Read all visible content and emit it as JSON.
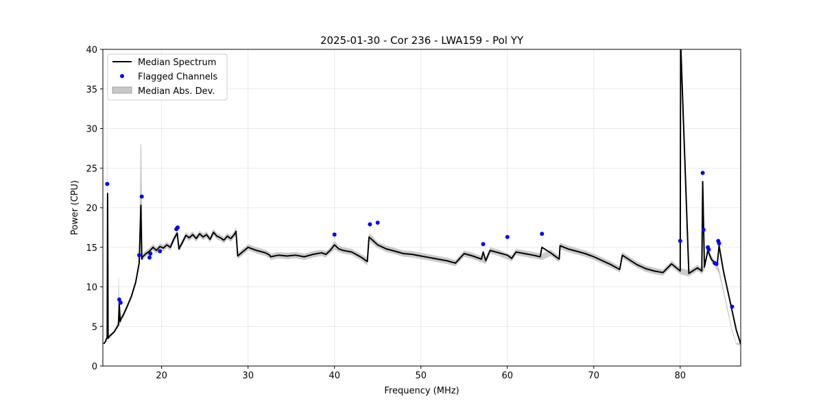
{
  "chart_data": {
    "type": "line",
    "title": "2025-01-30 - Cor 236 - LWA159 - Pol YY",
    "xlabel": "Frequency (MHz)",
    "ylabel": "Power (CPU)",
    "xlim": [
      13.2,
      87.0
    ],
    "ylim": [
      0,
      40
    ],
    "xticks": [
      20,
      30,
      40,
      50,
      60,
      70,
      80
    ],
    "yticks": [
      0,
      5,
      10,
      15,
      20,
      25,
      30,
      35,
      40
    ],
    "grid": true,
    "legend_position": "upper-left",
    "legend": [
      {
        "label": "Median Spectrum",
        "kind": "line",
        "color": "#000000"
      },
      {
        "label": "Flagged Channels",
        "kind": "marker",
        "color": "#0000ff"
      },
      {
        "label": "Median Abs. Dev.",
        "kind": "band",
        "color": "#c8c8c8"
      }
    ],
    "series": [
      {
        "name": "Median Spectrum",
        "color": "#000000",
        "x": [
          13.3,
          13.5,
          13.6,
          13.7,
          13.75,
          13.8,
          14.0,
          14.5,
          15.0,
          15.1,
          15.2,
          15.3,
          15.5,
          16.0,
          16.5,
          17.0,
          17.4,
          17.6,
          17.7,
          17.8,
          18.2,
          18.6,
          19.0,
          19.4,
          19.8,
          20.2,
          20.6,
          21.0,
          21.4,
          21.8,
          22.0,
          22.4,
          22.8,
          23.2,
          23.6,
          24.0,
          24.4,
          24.8,
          25.2,
          25.6,
          26.0,
          26.4,
          26.8,
          27.2,
          27.6,
          28.0,
          28.4,
          28.6,
          28.8,
          30.0,
          31.0,
          32.0,
          32.5,
          32.6,
          33.5,
          34.5,
          35.5,
          36.5,
          37.5,
          38.5,
          39.0,
          39.5,
          40.0,
          40.5,
          41.0,
          42.0,
          43.0,
          43.8,
          44.0,
          44.5,
          45.0,
          46.0,
          47.0,
          48.0,
          49.0,
          50.0,
          51.0,
          52.0,
          53.0,
          54.0,
          55.0,
          56.0,
          57.0,
          57.2,
          57.5,
          58.0,
          59.0,
          60.0,
          60.5,
          61.0,
          62.0,
          63.0,
          63.8,
          64.0,
          65.0,
          66.0,
          66.1,
          67.0,
          68.0,
          69.0,
          70.0,
          71.0,
          72.0,
          73.0,
          73.3,
          74.0,
          75.0,
          76.0,
          77.0,
          78.0,
          79.0,
          80.0,
          80.05,
          81.0,
          82.0,
          82.5,
          82.6,
          82.8,
          83.2,
          83.6,
          84.0,
          84.3,
          84.5,
          85.0,
          85.5,
          86.0,
          86.5,
          87.0
        ],
        "y": [
          2.8,
          3.1,
          3.4,
          3.6,
          21.8,
          3.5,
          3.8,
          4.3,
          5.2,
          7.8,
          5.6,
          6.0,
          6.3,
          7.5,
          8.8,
          10.6,
          13.0,
          20.3,
          13.5,
          13.8,
          14.2,
          14.5,
          15.0,
          14.6,
          15.1,
          14.9,
          15.3,
          15.0,
          16.0,
          16.8,
          14.8,
          15.6,
          16.5,
          16.2,
          16.6,
          16.1,
          16.7,
          16.3,
          16.6,
          16.0,
          16.9,
          16.4,
          16.2,
          15.9,
          16.4,
          16.1,
          16.6,
          17.0,
          13.9,
          15.0,
          14.6,
          14.3,
          14.0,
          13.8,
          14.0,
          13.9,
          14.0,
          13.8,
          14.1,
          14.3,
          14.1,
          14.6,
          15.3,
          14.8,
          14.6,
          14.4,
          13.8,
          13.2,
          16.3,
          15.8,
          15.3,
          14.8,
          14.5,
          14.2,
          14.1,
          13.9,
          13.7,
          13.5,
          13.3,
          13.0,
          14.2,
          13.9,
          13.5,
          14.4,
          13.3,
          14.6,
          14.3,
          14.0,
          13.6,
          14.4,
          14.2,
          14.0,
          13.8,
          15.0,
          14.3,
          13.5,
          15.2,
          14.8,
          14.5,
          14.2,
          13.8,
          13.3,
          12.8,
          12.2,
          14.0,
          13.5,
          12.8,
          12.3,
          12.0,
          11.8,
          12.9,
          12.0,
          41.0,
          11.7,
          12.4,
          12.0,
          23.3,
          12.5,
          14.6,
          13.5,
          13.0,
          13.0,
          15.2,
          12.0,
          9.5,
          7.0,
          4.5,
          2.8
        ]
      },
      {
        "name": "Flagged Channels",
        "color": "#0000ff",
        "x": [
          13.7,
          15.1,
          15.25,
          17.4,
          17.7,
          18.6,
          18.7,
          19.8,
          21.7,
          21.85,
          40.0,
          44.1,
          45.0,
          57.2,
          60.0,
          64.0,
          80.0,
          82.6,
          82.7,
          83.2,
          83.3,
          84.0,
          84.2,
          84.4,
          84.5,
          86.0
        ],
        "y": [
          23.0,
          8.4,
          8.0,
          14.0,
          21.4,
          13.7,
          14.2,
          14.5,
          17.3,
          17.5,
          16.6,
          17.9,
          18.1,
          15.4,
          16.3,
          16.7,
          15.8,
          24.4,
          17.2,
          15.0,
          14.7,
          13.0,
          12.9,
          15.8,
          15.5,
          7.5
        ]
      },
      {
        "name": "Median Abs. Dev.",
        "color": "#c8c8c8",
        "x": [
          13.3,
          13.5,
          13.6,
          13.7,
          13.75,
          13.8,
          14.0,
          14.5,
          14.95,
          15.0,
          15.05,
          15.1,
          15.3,
          15.5,
          16.0,
          16.5,
          17.0,
          17.4,
          17.55,
          17.6,
          17.65,
          17.8,
          18.2,
          18.6,
          19.0,
          19.4,
          19.8,
          20.2,
          20.6,
          21.0,
          21.4,
          21.8,
          22.0,
          22.4,
          22.8,
          23.2,
          23.6,
          24.0,
          24.4,
          24.8,
          25.2,
          25.6,
          26.0,
          26.4,
          26.8,
          27.2,
          27.6,
          28.0,
          28.4,
          28.6,
          28.8,
          30.0,
          31.0,
          32.0,
          32.5,
          32.6,
          33.5,
          34.5,
          35.5,
          36.5,
          37.5,
          38.5,
          39.0,
          39.5,
          40.0,
          40.5,
          41.0,
          42.0,
          43.0,
          43.8,
          44.0,
          44.5,
          45.0,
          46.0,
          47.0,
          48.0,
          49.0,
          50.0,
          51.0,
          52.0,
          53.0,
          54.0,
          55.0,
          56.0,
          57.0,
          57.5,
          58.0,
          59.0,
          60.5,
          61.0,
          62.0,
          63.0,
          64.0,
          65.0,
          66.0,
          66.1,
          67.0,
          68.0,
          69.0,
          70.0,
          71.0,
          72.0,
          73.0,
          73.3,
          74.0,
          75.0,
          76.0,
          77.0,
          78.0,
          79.0,
          80.0,
          81.0,
          82.0,
          82.5,
          82.8,
          83.2,
          83.6,
          84.0,
          84.5,
          85.0,
          85.5,
          86.0,
          86.5,
          87.0
        ],
        "lower": [
          2.75,
          3.0,
          3.3,
          3.4,
          20.5,
          3.3,
          3.6,
          4.1,
          4.9,
          5.0,
          5.0,
          5.0,
          5.7,
          6.0,
          7.2,
          8.5,
          10.3,
          12.7,
          16.0,
          16.0,
          16.0,
          13.4,
          13.8,
          14.1,
          14.6,
          14.2,
          14.7,
          14.5,
          14.9,
          14.6,
          15.6,
          16.4,
          14.4,
          15.2,
          16.1,
          15.8,
          16.2,
          15.7,
          16.3,
          15.9,
          16.2,
          15.6,
          16.5,
          16.0,
          15.8,
          15.5,
          16.0,
          15.7,
          16.2,
          16.5,
          13.5,
          14.6,
          14.2,
          13.9,
          13.6,
          13.4,
          13.6,
          13.5,
          13.6,
          13.4,
          13.7,
          13.9,
          13.7,
          14.2,
          14.7,
          14.4,
          14.2,
          14.0,
          13.4,
          12.7,
          15.8,
          15.3,
          14.9,
          14.4,
          14.1,
          13.8,
          13.7,
          13.5,
          13.3,
          13.1,
          12.9,
          12.6,
          13.8,
          13.5,
          13.1,
          12.9,
          14.2,
          13.9,
          13.2,
          14.0,
          13.8,
          13.6,
          13.4,
          13.9,
          13.1,
          14.8,
          14.4,
          14.1,
          13.8,
          13.4,
          12.9,
          12.4,
          11.8,
          13.6,
          13.1,
          12.4,
          11.9,
          11.6,
          11.4,
          12.5,
          11.6,
          11.3,
          12.0,
          11.6,
          12.1,
          14.2,
          13.1,
          12.6,
          11.6,
          9.2,
          6.7,
          4.3,
          2.7,
          2.6
        ],
        "upper": [
          2.85,
          3.2,
          3.5,
          3.8,
          40.0,
          3.7,
          4.0,
          4.5,
          5.6,
          11.2,
          11.2,
          8.6,
          6.3,
          6.6,
          7.8,
          9.1,
          10.9,
          13.3,
          28.0,
          28.0,
          28.0,
          14.2,
          14.6,
          14.9,
          15.4,
          15.0,
          15.5,
          15.3,
          15.7,
          15.4,
          16.4,
          17.2,
          15.2,
          16.0,
          16.9,
          16.6,
          17.0,
          16.5,
          17.1,
          16.7,
          17.0,
          16.4,
          17.3,
          16.8,
          16.6,
          16.3,
          16.8,
          16.5,
          17.0,
          17.6,
          14.3,
          15.4,
          15.0,
          14.7,
          14.4,
          14.2,
          14.4,
          14.3,
          14.4,
          14.2,
          14.5,
          14.7,
          14.5,
          15.0,
          15.8,
          15.2,
          15.0,
          14.8,
          14.2,
          13.7,
          16.8,
          16.3,
          15.7,
          15.2,
          14.9,
          14.6,
          14.5,
          14.3,
          14.1,
          13.9,
          13.7,
          13.4,
          14.6,
          14.3,
          13.9,
          13.7,
          15.0,
          14.7,
          14.0,
          14.8,
          14.6,
          14.4,
          14.2,
          14.7,
          13.9,
          15.6,
          15.2,
          14.9,
          14.6,
          14.2,
          13.7,
          13.2,
          12.6,
          14.4,
          13.9,
          13.2,
          12.7,
          12.4,
          12.2,
          13.3,
          12.4,
          12.1,
          12.8,
          12.4,
          12.9,
          15.0,
          13.9,
          13.4,
          12.4,
          9.8,
          7.3,
          4.7,
          2.9,
          3.0
        ]
      }
    ]
  }
}
